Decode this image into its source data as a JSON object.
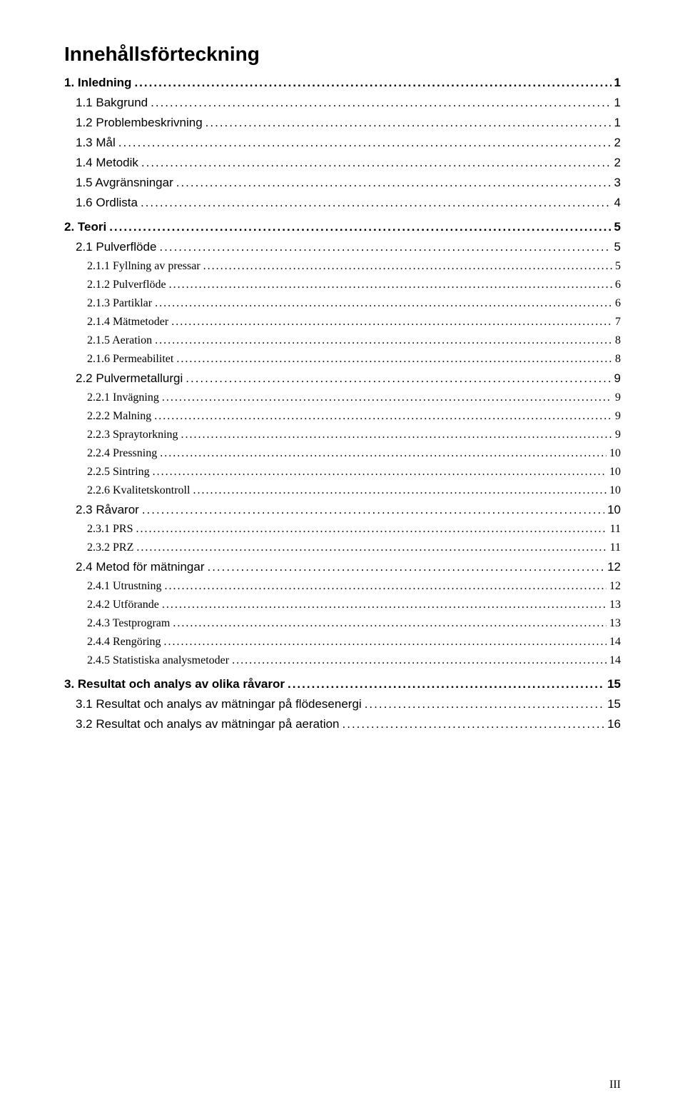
{
  "title": "Innehållsförteckning",
  "footer_page": "III",
  "colors": {
    "text": "#000000",
    "background": "#ffffff"
  },
  "typography": {
    "title_fontsize": 28,
    "title_weight": "bold",
    "level0_fontsize": 17,
    "level0_weight": "bold",
    "level0_family": "Arial",
    "level1_fontsize": 17,
    "level1_weight": "normal",
    "level1_family": "Arial",
    "level2_fontsize": 16,
    "level2_weight": "normal",
    "level2_family": "Times New Roman"
  },
  "toc": [
    {
      "level": 0,
      "label": "1. Inledning",
      "page": "1"
    },
    {
      "level": 1,
      "label": "1.1 Bakgrund",
      "page": "1"
    },
    {
      "level": 1,
      "label": "1.2 Problembeskrivning",
      "page": "1"
    },
    {
      "level": 1,
      "label": "1.3 Mål",
      "page": "2"
    },
    {
      "level": 1,
      "label": "1.4 Metodik",
      "page": "2"
    },
    {
      "level": 1,
      "label": "1.5 Avgränsningar",
      "page": "3"
    },
    {
      "level": 1,
      "label": "1.6 Ordlista",
      "page": "4"
    },
    {
      "level": 0,
      "label": "2. Teori",
      "page": "5"
    },
    {
      "level": 1,
      "label": "2.1 Pulverflöde",
      "page": "5"
    },
    {
      "level": 2,
      "label": "2.1.1 Fyllning av pressar",
      "page": "5"
    },
    {
      "level": 2,
      "label": "2.1.2 Pulverflöde",
      "page": "6"
    },
    {
      "level": 2,
      "label": "2.1.3 Partiklar",
      "page": "6"
    },
    {
      "level": 2,
      "label": "2.1.4 Mätmetoder",
      "page": "7"
    },
    {
      "level": 2,
      "label": "2.1.5 Aeration",
      "page": "8"
    },
    {
      "level": 2,
      "label": "2.1.6 Permeabilitet",
      "page": "8"
    },
    {
      "level": 1,
      "label": "2.2 Pulvermetallurgi",
      "page": "9"
    },
    {
      "level": 2,
      "label": "2.2.1 Invägning",
      "page": "9"
    },
    {
      "level": 2,
      "label": "2.2.2 Malning",
      "page": "9"
    },
    {
      "level": 2,
      "label": "2.2.3 Spraytorkning",
      "page": "9"
    },
    {
      "level": 2,
      "label": "2.2.4 Pressning",
      "page": "10"
    },
    {
      "level": 2,
      "label": "2.2.5 Sintring",
      "page": "10"
    },
    {
      "level": 2,
      "label": "2.2.6 Kvalitetskontroll",
      "page": "10"
    },
    {
      "level": 1,
      "label": "2.3 Råvaror",
      "page": "10"
    },
    {
      "level": 2,
      "label": "2.3.1 PRS",
      "page": "11"
    },
    {
      "level": 2,
      "label": "2.3.2 PRZ",
      "page": "11"
    },
    {
      "level": 1,
      "label": "2.4 Metod för mätningar",
      "page": "12"
    },
    {
      "level": 2,
      "label": "2.4.1 Utrustning",
      "page": "12"
    },
    {
      "level": 2,
      "label": "2.4.2 Utförande",
      "page": "13"
    },
    {
      "level": 2,
      "label": "2.4.3 Testprogram",
      "page": "13"
    },
    {
      "level": 2,
      "label": "2.4.4 Rengöring",
      "page": "14"
    },
    {
      "level": 2,
      "label": "2.4.5 Statistiska analysmetoder",
      "page": "14"
    },
    {
      "level": 0,
      "label": "3. Resultat och analys av olika råvaror",
      "page": "15"
    },
    {
      "level": 1,
      "label": "3.1 Resultat och analys av mätningar på flödesenergi",
      "page": "15"
    },
    {
      "level": 1,
      "label": "3.2 Resultat och analys av mätningar på aeration",
      "page": "16"
    }
  ]
}
